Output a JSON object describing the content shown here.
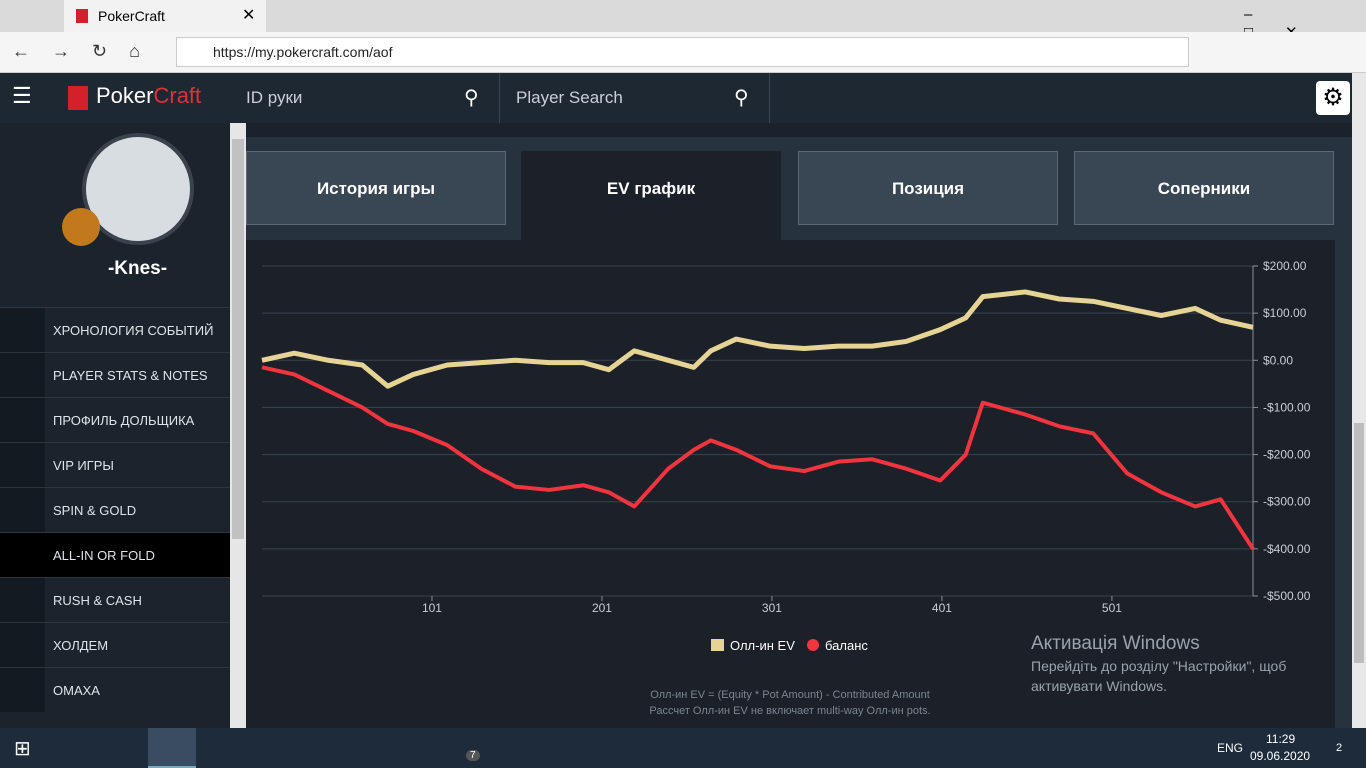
{
  "browser": {
    "tab_title": "PokerCraft",
    "url": "https://my.pokercraft.com/aof"
  },
  "header": {
    "logo_a": "Poker",
    "logo_b": "Craft",
    "hand_id_placeholder": "ID руки",
    "player_search_placeholder": "Player Search"
  },
  "sidebar": {
    "username": "-Knes-",
    "menu": [
      "ХРОНОЛОГИЯ СОБЫТИЙ",
      "PLAYER STATS & NOTES",
      "ПРОФИЛЬ ДОЛЬЩИКА",
      "VIP ИГРЫ",
      "SPIN & GOLD",
      "ALL-IN OR FOLD",
      "RUSH & CASH",
      "ХОЛДЕМ",
      "ОМАХА"
    ]
  },
  "tabs": [
    "История игры",
    "EV график",
    "Позиция",
    "Соперники"
  ],
  "chart_data": {
    "type": "line",
    "x": [
      1,
      20,
      40,
      60,
      75,
      90,
      110,
      130,
      150,
      170,
      190,
      205,
      220,
      240,
      255,
      265,
      280,
      300,
      320,
      340,
      360,
      380,
      400,
      415,
      425,
      450,
      470,
      490,
      510,
      530,
      550,
      565,
      584
    ],
    "xlim": [
      1,
      584
    ],
    "xticks": [
      101,
      201,
      301,
      401,
      501
    ],
    "ylim": [
      -500,
      200
    ],
    "yticks": [
      {
        "value": 200,
        "label": "$200.00"
      },
      {
        "value": 100,
        "label": "$100.00"
      },
      {
        "value": 0,
        "label": "$0.00"
      },
      {
        "value": -100,
        "label": "-$100.00"
      },
      {
        "value": -200,
        "label": "-$200.00"
      },
      {
        "value": -300,
        "label": "-$300.00"
      },
      {
        "value": -400,
        "label": "-$400.00"
      },
      {
        "value": -500,
        "label": "-$500.00"
      }
    ],
    "grid": true,
    "legend": "bottom",
    "series": [
      {
        "name": "Олл-ин EV",
        "color": "#e6d495",
        "values": [
          0,
          15,
          0,
          -10,
          -55,
          -30,
          -10,
          -5,
          0,
          -5,
          -5,
          -20,
          20,
          0,
          -15,
          20,
          45,
          30,
          25,
          30,
          30,
          40,
          65,
          90,
          135,
          145,
          130,
          125,
          110,
          95,
          110,
          85,
          70
        ]
      },
      {
        "name": "баланс",
        "color": "#f2343e",
        "values": [
          -15,
          -30,
          -65,
          -100,
          -135,
          -150,
          -180,
          -230,
          -268,
          -275,
          -265,
          -280,
          -310,
          -230,
          -190,
          -170,
          -190,
          -225,
          -235,
          -215,
          -210,
          -230,
          -255,
          -200,
          -90,
          -115,
          -140,
          -155,
          -240,
          -280,
          -310,
          -295,
          -400
        ]
      }
    ]
  },
  "footnotes": [
    "Олл-ин EV = (Equity * Pot Amount) - Contributed Amount",
    "Рассчет Олл-ин EV не включает multi-way Олл-ин pots."
  ],
  "watermark": {
    "title": "Активація Windows",
    "line1": "Перейдіть до розділу \"Настройки\", щоб",
    "line2": "активувати Windows."
  },
  "taskbar": {
    "telegram_badge": "7",
    "lang": "ENG",
    "time": "11:29",
    "date": "09.06.2020",
    "notifications": "2"
  }
}
